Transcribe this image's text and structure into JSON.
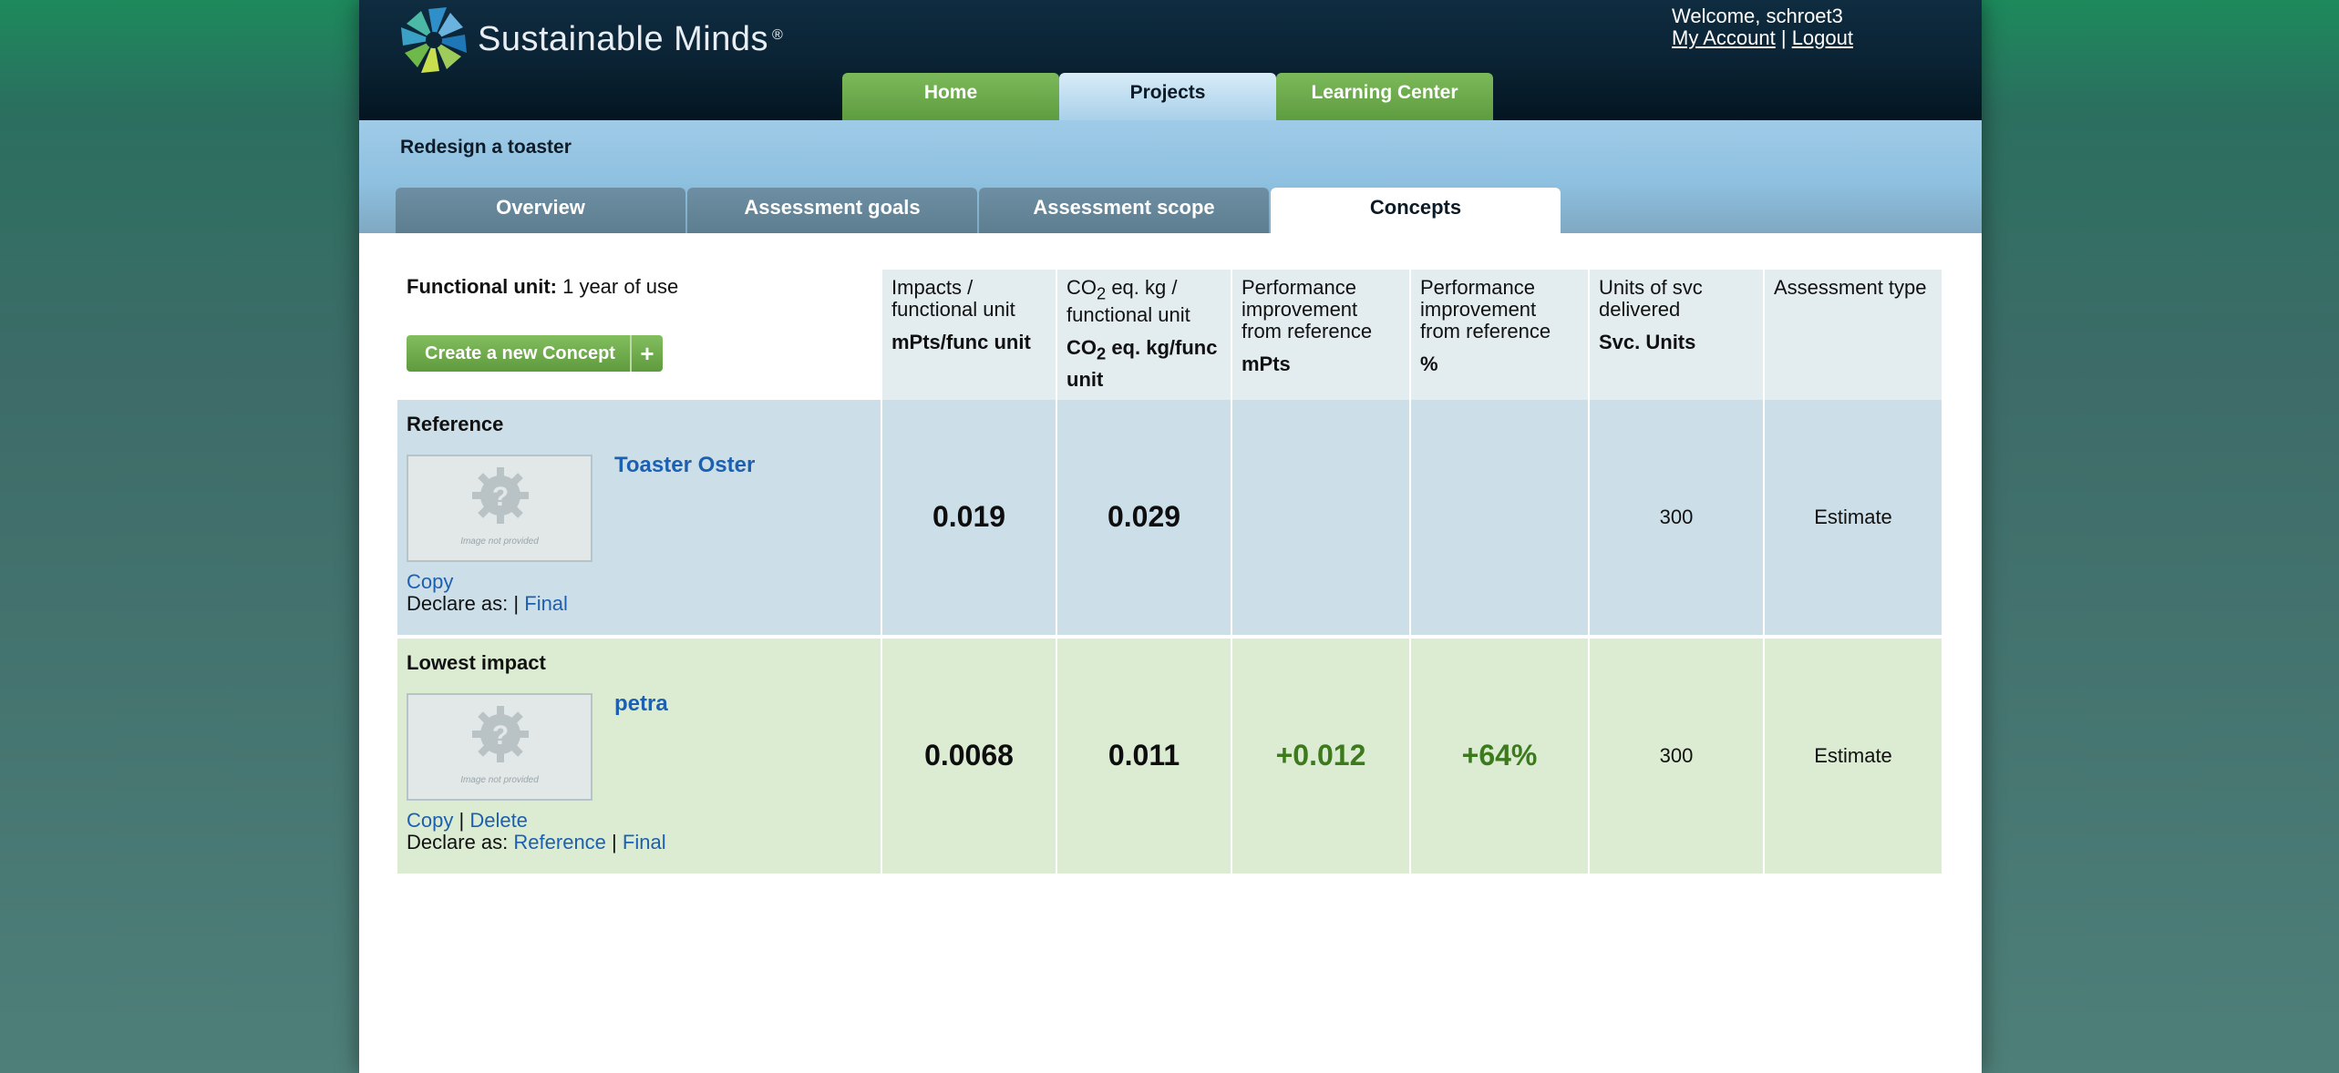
{
  "header": {
    "brand": "Sustainable Minds",
    "registered": "®",
    "welcome": "Welcome, schroet3",
    "my_account": "My Account",
    "separator": "|",
    "logout": "Logout"
  },
  "main_tabs": [
    {
      "label": "Home"
    },
    {
      "label": "Projects"
    },
    {
      "label": "Learning Center"
    }
  ],
  "project": {
    "title": "Redesign a toaster",
    "tabs": [
      {
        "label": "Overview"
      },
      {
        "label": "Assessment goals"
      },
      {
        "label": "Assessment scope"
      },
      {
        "label": "Concepts"
      }
    ]
  },
  "table": {
    "functional_unit_label": "Functional unit:",
    "functional_unit_value": "1 year of use",
    "create_button": "Create a new Concept",
    "create_plus": "+",
    "columns": [
      {
        "line1": "Impacts /",
        "line2": "functional unit",
        "unit": "mPts/func unit"
      },
      {
        "line1a": "CO",
        "line1sub": "2",
        "line1b": " eq. kg /",
        "line2": "functional unit",
        "unit_a": "CO",
        "unit_sub": "2",
        "unit_b": " eq. kg/func unit"
      },
      {
        "line1": "Performance",
        "line2": "improvement",
        "line3": "from reference",
        "unit": "mPts"
      },
      {
        "line1": "Performance",
        "line2": "improvement",
        "line3": "from reference",
        "unit": "%"
      },
      {
        "line1": "Units of svc",
        "line2": "delivered",
        "unit": "Svc. Units"
      },
      {
        "line1": "Assessment type"
      }
    ],
    "rows": [
      {
        "label": "Reference",
        "name": "Toaster Oster",
        "image_caption": "Image not provided",
        "copy": "Copy",
        "declare_label": "Declare as:",
        "pipe": "|",
        "final": "Final",
        "impacts": "0.019",
        "co2": "0.029",
        "perf_mpts": "",
        "perf_pct": "",
        "units": "300",
        "assessment": "Estimate"
      },
      {
        "label": "Lowest impact",
        "name": "petra",
        "image_caption": "Image not provided",
        "copy": "Copy",
        "pipe1": "|",
        "delete": "Delete",
        "declare_label": "Declare as:",
        "reference": "Reference",
        "pipe2": "|",
        "final": "Final",
        "impacts": "0.0068",
        "co2": "0.011",
        "perf_mpts": "+0.012",
        "perf_pct": "+64%",
        "units": "300",
        "assessment": "Estimate"
      }
    ]
  },
  "colors": {
    "header_dark": "#0a2233",
    "green_tab": "#6aa84a",
    "link_blue": "#1d5fb0",
    "reference_row": "#ccdfe8",
    "lowest_row": "#dbecd3",
    "positive_green": "#3d7a1e"
  }
}
